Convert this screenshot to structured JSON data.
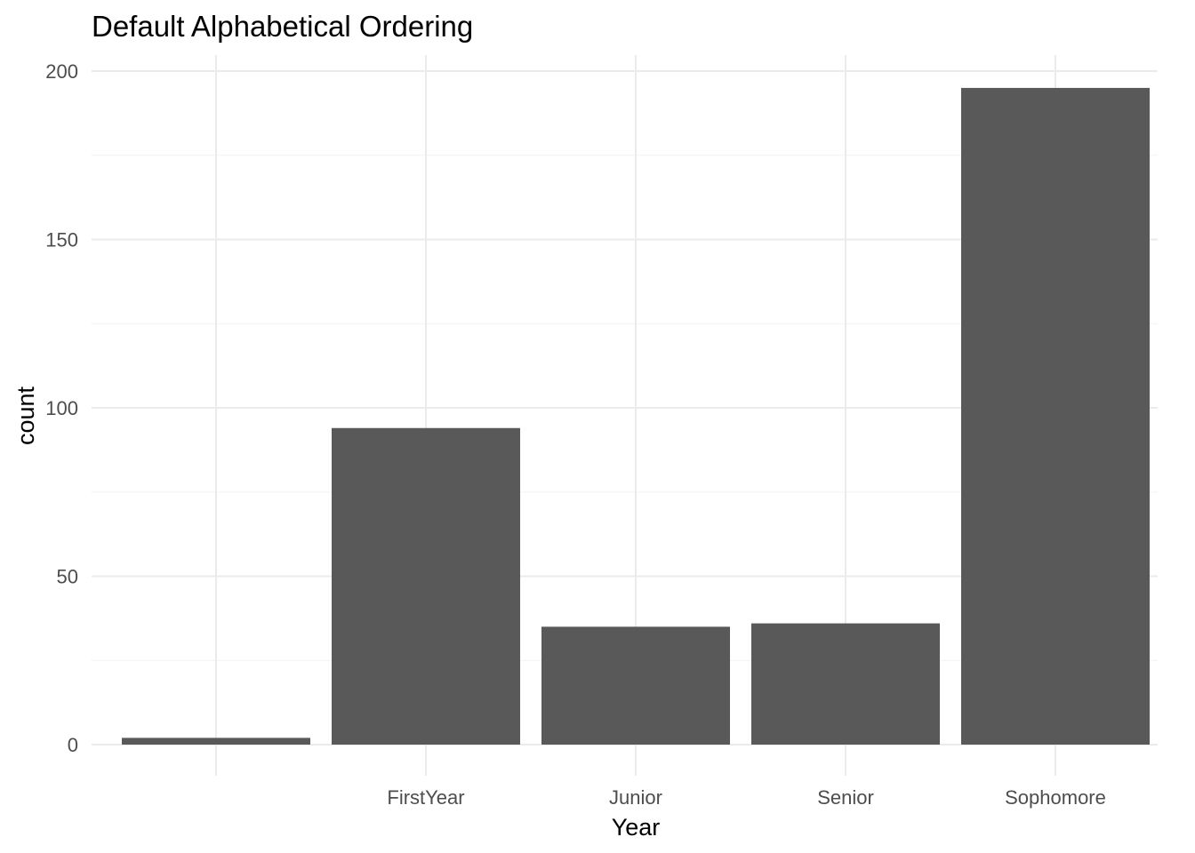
{
  "chart_data": {
    "type": "bar",
    "title": "Default Alphabetical Ordering",
    "xlabel": "Year",
    "ylabel": "count",
    "categories": [
      "",
      "FirstYear",
      "Junior",
      "Senior",
      "Sophomore"
    ],
    "values": [
      2,
      94,
      35,
      36,
      195
    ],
    "ylim": [
      0,
      208
    ],
    "yticks": [
      0,
      50,
      100,
      150,
      200
    ],
    "grid": true,
    "legend": "none",
    "colors": {
      "bar": "#595959",
      "grid_major": "#ebebeb",
      "grid_minor": "#f2f2f2",
      "background": "#ffffff"
    }
  }
}
